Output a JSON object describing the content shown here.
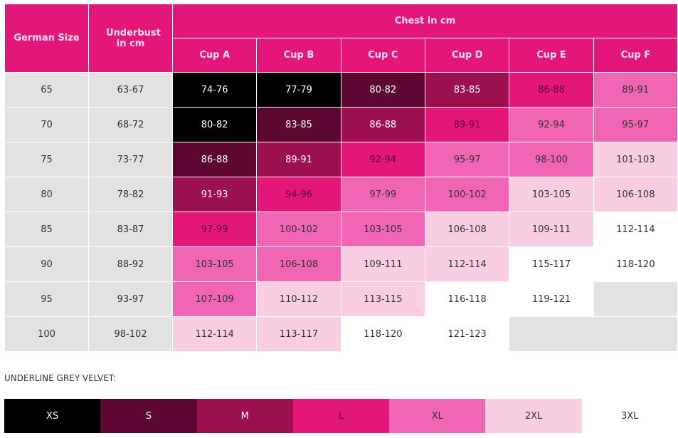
{
  "palette": {
    "0": "#000000",
    "1": "#5c0630",
    "2": "#9c1050",
    "3": "#e3177a",
    "4": "#f066b4",
    "5": "#f9cde2",
    "6": "#ffffff",
    "g": "#e2e2e2"
  },
  "header": {
    "german_size": "German Size",
    "underbust": "Underbust in cm",
    "chest": "Chest in cm",
    "cups": [
      "Cup A",
      "Cup B",
      "Cup C",
      "Cup D",
      "Cup E",
      "Cup F"
    ]
  },
  "rows": [
    {
      "size": "65",
      "underbust": "63-67",
      "cells": [
        [
          "74-76",
          "0"
        ],
        [
          "77-79",
          "0"
        ],
        [
          "80-82",
          "1"
        ],
        [
          "83-85",
          "2"
        ],
        [
          "86-88",
          "3"
        ],
        [
          "89-91",
          "4"
        ]
      ]
    },
    {
      "size": "70",
      "underbust": "68-72",
      "cells": [
        [
          "80-82",
          "0"
        ],
        [
          "83-85",
          "1"
        ],
        [
          "86-88",
          "2"
        ],
        [
          "89-91",
          "3"
        ],
        [
          "92-94",
          "4"
        ],
        [
          "95-97",
          "4"
        ]
      ]
    },
    {
      "size": "75",
      "underbust": "73-77",
      "cells": [
        [
          "86-88",
          "1"
        ],
        [
          "89-91",
          "2"
        ],
        [
          "92-94",
          "3"
        ],
        [
          "95-97",
          "4"
        ],
        [
          "98-100",
          "4"
        ],
        [
          "101-103",
          "5"
        ]
      ]
    },
    {
      "size": "80",
      "underbust": "78-82",
      "cells": [
        [
          "91-93",
          "2"
        ],
        [
          "94-96",
          "3"
        ],
        [
          "97-99",
          "4"
        ],
        [
          "100-102",
          "4"
        ],
        [
          "103-105",
          "5"
        ],
        [
          "106-108",
          "5"
        ]
      ]
    },
    {
      "size": "85",
      "underbust": "83-87",
      "cells": [
        [
          "97-99",
          "3"
        ],
        [
          "100-102",
          "4"
        ],
        [
          "103-105",
          "4"
        ],
        [
          "106-108",
          "5"
        ],
        [
          "109-111",
          "5"
        ],
        [
          "112-114",
          "6"
        ]
      ]
    },
    {
      "size": "90",
      "underbust": "88-92",
      "cells": [
        [
          "103-105",
          "4"
        ],
        [
          "106-108",
          "4"
        ],
        [
          "109-111",
          "5"
        ],
        [
          "112-114",
          "5"
        ],
        [
          "115-117",
          "6"
        ],
        [
          "118-120",
          "6"
        ]
      ]
    },
    {
      "size": "95",
      "underbust": "93-97",
      "cells": [
        [
          "107-109",
          "4"
        ],
        [
          "110-112",
          "5"
        ],
        [
          "113-115",
          "5"
        ],
        [
          "116-118",
          "6"
        ],
        [
          "119-121",
          "6"
        ],
        [
          "",
          "g"
        ]
      ]
    },
    {
      "size": "100",
      "underbust": "98-102",
      "cells": [
        [
          "112-114",
          "5"
        ],
        [
          "113-117",
          "5"
        ],
        [
          "118-120",
          "6"
        ],
        [
          "121-123",
          "6"
        ],
        [
          "",
          "g"
        ],
        [
          "",
          "g"
        ]
      ]
    }
  ],
  "caption": "UNDERLINE GREY VELVET:",
  "sizes": [
    [
      "XS",
      "0"
    ],
    [
      "S",
      "1"
    ],
    [
      "M",
      "2"
    ],
    [
      "L",
      "3"
    ],
    [
      "XL",
      "4"
    ],
    [
      "2XL",
      "5"
    ],
    [
      "3XL",
      "6"
    ]
  ]
}
